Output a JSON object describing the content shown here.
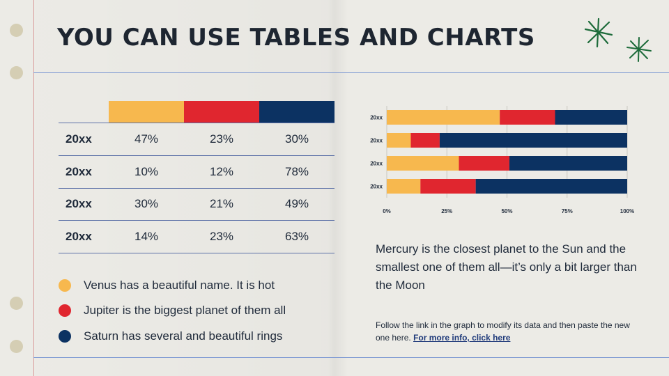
{
  "title": "YOU CAN USE TABLES AND CHARTS",
  "colors": {
    "series1": "#f7b84e",
    "series2": "#e0262f",
    "series3": "#0c3262",
    "rule": "#7f9ad3",
    "margin": "#d99a9a",
    "hole": "#d5ceb4",
    "sparkle": "#1d6b3a"
  },
  "table": {
    "rows": [
      {
        "label": "20xx",
        "values": [
          "47%",
          "23%",
          "30%"
        ]
      },
      {
        "label": "20xx",
        "values": [
          "10%",
          "12%",
          "78%"
        ]
      },
      {
        "label": "20xx",
        "values": [
          "30%",
          "21%",
          "49%"
        ]
      },
      {
        "label": "20xx",
        "values": [
          "14%",
          "23%",
          "63%"
        ]
      }
    ]
  },
  "legend": [
    {
      "text": "Venus has a beautiful name. It is hot"
    },
    {
      "text": "Jupiter is the biggest planet of them all"
    },
    {
      "text": "Saturn has several and beautiful rings"
    }
  ],
  "chart_data": {
    "type": "bar",
    "orientation": "horizontal",
    "stacked": "percent",
    "categories": [
      "20xx",
      "20xx",
      "20xx",
      "20xx"
    ],
    "series": [
      {
        "values": [
          47,
          10,
          30,
          14
        ]
      },
      {
        "values": [
          23,
          12,
          21,
          23
        ]
      },
      {
        "values": [
          30,
          78,
          49,
          63
        ]
      }
    ],
    "xlim": [
      0,
      100
    ],
    "xticks": [
      "0%",
      "25%",
      "50%",
      "75%",
      "100%"
    ],
    "grid": true,
    "legend": "none"
  },
  "description": "Mercury is the closest planet to the Sun and the smallest one of them all—it’s only a bit larger than the Moon",
  "note": {
    "text": "Follow the link in the graph to modify its data and then paste the new one here.",
    "link": "For more info, click here"
  }
}
